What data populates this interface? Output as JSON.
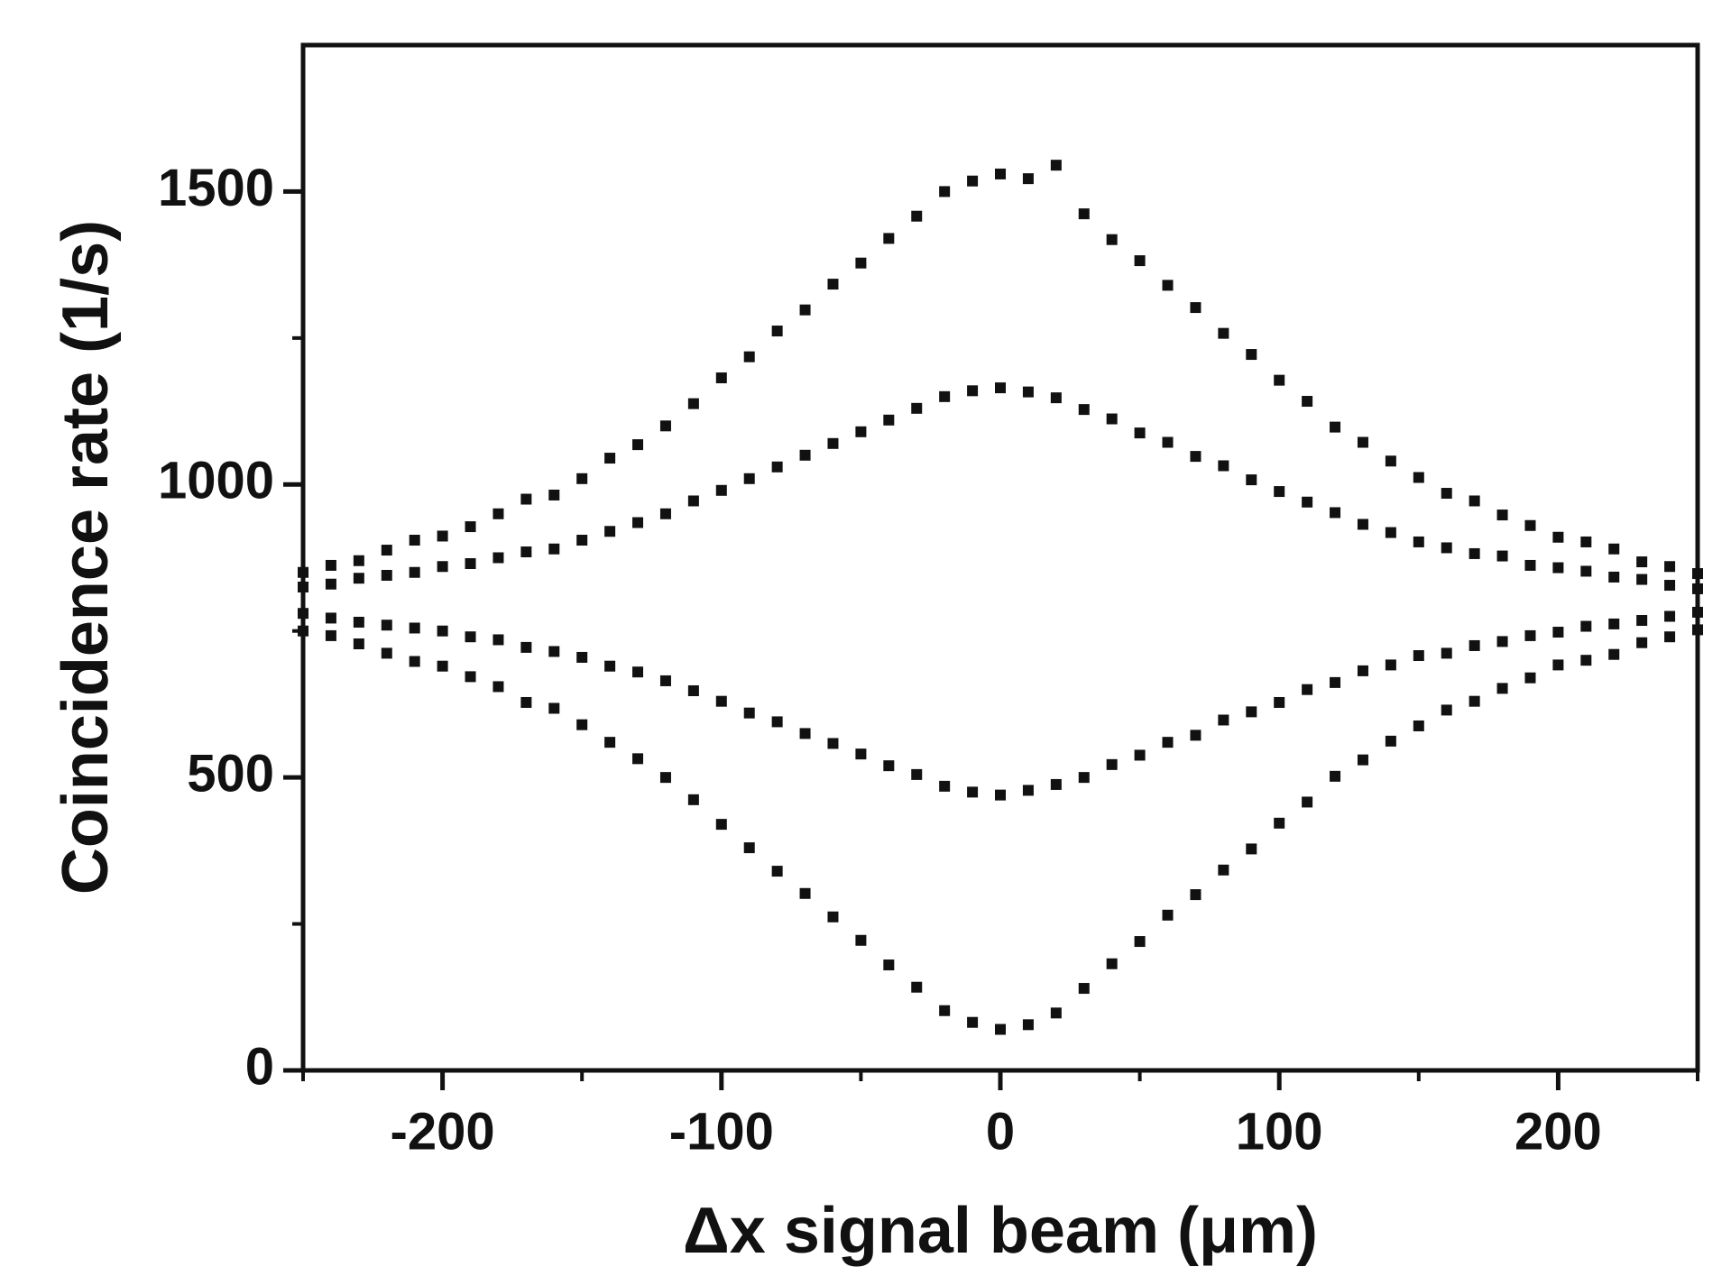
{
  "chart_data": {
    "type": "scatter",
    "xlabel": "Δx signal beam (μm)",
    "ylabel": "Coincidence rate (1/s)",
    "x": [
      -250,
      -240,
      -230,
      -220,
      -210,
      -200,
      -190,
      -180,
      -170,
      -160,
      -150,
      -140,
      -130,
      -120,
      -110,
      -100,
      -90,
      -80,
      -70,
      -60,
      -50,
      -40,
      -30,
      -20,
      -10,
      0,
      10,
      20,
      30,
      40,
      50,
      60,
      70,
      80,
      90,
      100,
      110,
      120,
      130,
      140,
      150,
      160,
      170,
      180,
      190,
      200,
      210,
      220,
      230,
      240,
      250
    ],
    "series": [
      {
        "color": "#111111",
        "values": [
          850,
          862,
          870,
          888,
          905,
          912,
          928,
          950,
          975,
          982,
          1010,
          1045,
          1068,
          1100,
          1138,
          1182,
          1218,
          1262,
          1298,
          1342,
          1378,
          1420,
          1458,
          1500,
          1518,
          1530,
          1522,
          1545,
          1462,
          1418,
          1382,
          1340,
          1302,
          1258,
          1222,
          1178,
          1142,
          1098,
          1072,
          1040,
          1012,
          985,
          972,
          948,
          930,
          910,
          902,
          890,
          868,
          860,
          848
        ]
      },
      {
        "color": "#111111",
        "values": [
          750,
          742,
          728,
          712,
          698,
          690,
          672,
          655,
          628,
          618,
          590,
          560,
          532,
          500,
          462,
          420,
          380,
          340,
          302,
          262,
          222,
          180,
          142,
          102,
          82,
          70,
          78,
          98,
          140,
          182,
          220,
          265,
          300,
          342,
          378,
          422,
          458,
          502,
          530,
          562,
          588,
          615,
          630,
          652,
          670,
          692,
          700,
          710,
          730,
          740,
          752
        ]
      },
      {
        "color": "#111111",
        "values": [
          825,
          830,
          840,
          845,
          850,
          860,
          865,
          875,
          885,
          890,
          905,
          920,
          935,
          950,
          972,
          990,
          1010,
          1030,
          1050,
          1070,
          1090,
          1110,
          1130,
          1150,
          1160,
          1165,
          1158,
          1148,
          1128,
          1112,
          1088,
          1072,
          1048,
          1032,
          1008,
          988,
          970,
          952,
          932,
          918,
          902,
          892,
          882,
          878,
          862,
          858,
          852,
          842,
          838,
          828,
          822
        ]
      },
      {
        "color": "#111111",
        "values": [
          780,
          772,
          765,
          760,
          755,
          750,
          740,
          735,
          722,
          715,
          705,
          690,
          680,
          665,
          648,
          630,
          610,
          595,
          575,
          558,
          540,
          520,
          505,
          485,
          475,
          470,
          478,
          488,
          500,
          522,
          538,
          560,
          572,
          598,
          612,
          628,
          650,
          662,
          682,
          692,
          708,
          712,
          725,
          732,
          742,
          748,
          758,
          762,
          768,
          775,
          782
        ]
      }
    ],
    "xlim": [
      -250,
      250
    ],
    "xticks": [
      -200,
      -100,
      0,
      100,
      200
    ],
    "xminorticks": [
      -250,
      -150,
      -50,
      50,
      150,
      250
    ],
    "ylim": [
      0,
      1750
    ],
    "yticks": [
      0,
      500,
      1000,
      1500
    ],
    "yminorticks": [
      250,
      750,
      1250
    ],
    "grid": false
  }
}
